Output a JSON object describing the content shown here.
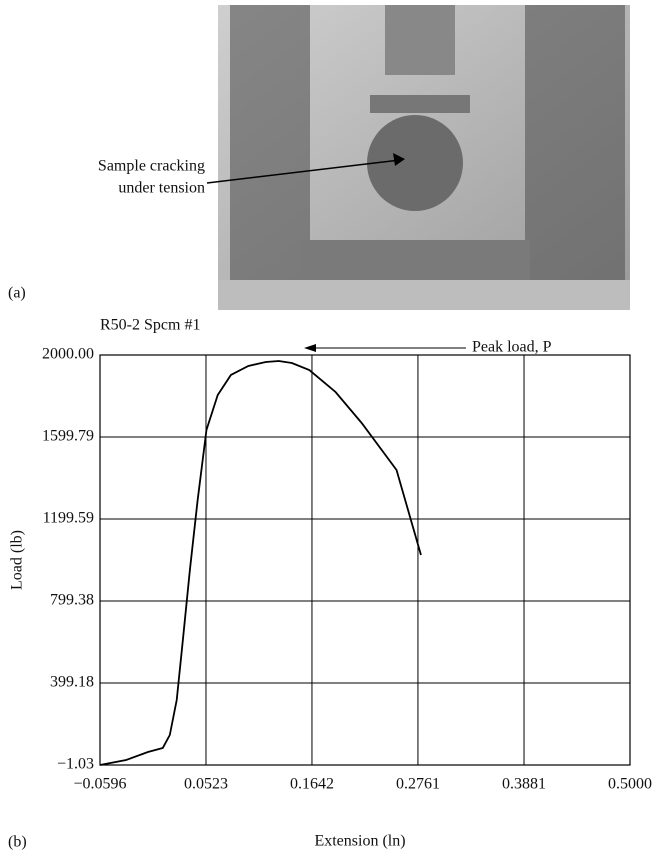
{
  "photo": {
    "annotation": [
      "Sample cracking",
      "under tension"
    ],
    "panel_label": "(a)"
  },
  "chart_panel_label": "(b)",
  "chart_data": {
    "type": "line",
    "title": "R50-2 Spcm #1",
    "x_label": "Extension (ln)",
    "y_label": "Load (lb)",
    "annotations": [
      "Peak load, P"
    ],
    "x": [
      -0.0596,
      -0.032,
      -0.009,
      0.0067,
      0.0141,
      0.0214,
      0.0279,
      0.0353,
      0.0435,
      0.0528,
      0.0647,
      0.0786,
      0.097,
      0.1154,
      0.1292,
      0.143,
      0.1614,
      0.1891,
      0.2167,
      0.2535,
      0.2793
    ],
    "series": [
      {
        "name": "R50-2 Spcm #1",
        "color": "#000000",
        "values": [
          -1.03,
          23.4,
          62.4,
          82.0,
          145.4,
          316.2,
          609.1,
          950.7,
          1292.3,
          1634.0,
          1804.8,
          1902.4,
          1946.4,
          1965.9,
          1970.8,
          1961.0,
          1926.8,
          1819.5,
          1668.2,
          1438.7,
          1023.9
        ]
      }
    ],
    "xlim": [
      -0.0596,
      0.5
    ],
    "xticks": [
      {
        "value": -0.0596,
        "label": "−0.0596"
      },
      0.0523,
      0.1642,
      0.2761,
      0.3881,
      {
        "value": 0.5,
        "label": "0.5000"
      }
    ],
    "ylim": [
      -1.03,
      2000
    ],
    "yticks": [
      {
        "value": -1.03,
        "label": "−1.03"
      },
      399.18,
      799.38,
      1199.59,
      1599.79,
      {
        "value": 2000,
        "label": "2000.00"
      }
    ],
    "grid": true
  }
}
